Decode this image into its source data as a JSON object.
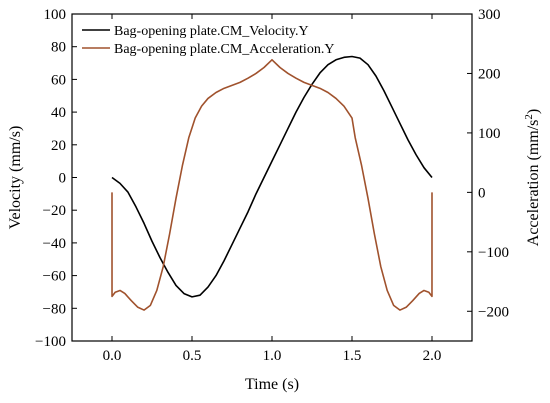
{
  "chart_data": {
    "type": "line",
    "xlabel": "Time (s)",
    "ylabel_left": "Velocity (mm/s)",
    "ylabel_right_prefix": "Acceleration (mm/s",
    "ylabel_right_sup": "2",
    "ylabel_right_suffix": ")",
    "xlim": [
      -0.25,
      2.25
    ],
    "ylim_left": [
      -100,
      100
    ],
    "ylim_right": [
      -250,
      300
    ],
    "x_ticks": [
      0.0,
      0.5,
      1.0,
      1.5,
      2.0
    ],
    "x_tick_labels": [
      "0.0",
      "0.5",
      "1.0",
      "1.5",
      "2.0"
    ],
    "y_left_ticks": [
      -100,
      -80,
      -60,
      -40,
      -20,
      0,
      20,
      40,
      60,
      80,
      100
    ],
    "y_left_tick_labels": [
      "−100",
      "−80",
      "−60",
      "−40",
      "−20",
      "0",
      "20",
      "40",
      "60",
      "80",
      "100"
    ],
    "y_right_ticks": [
      -200,
      -100,
      0,
      100,
      200,
      300
    ],
    "y_right_tick_labels": [
      "−200",
      "−100",
      "0",
      "100",
      "200",
      "300"
    ],
    "grid": false,
    "legend_position": "top-left",
    "series": [
      {
        "name": "Bag-opening plate.CM_Velocity.Y",
        "color": "#000000",
        "axis": "left",
        "x": [
          0.0,
          0.05,
          0.1,
          0.15,
          0.2,
          0.25,
          0.3,
          0.35,
          0.4,
          0.45,
          0.5,
          0.55,
          0.6,
          0.65,
          0.7,
          0.75,
          0.8,
          0.85,
          0.9,
          0.95,
          1.0,
          1.05,
          1.1,
          1.15,
          1.2,
          1.25,
          1.3,
          1.35,
          1.4,
          1.45,
          1.5,
          1.55,
          1.6,
          1.65,
          1.7,
          1.75,
          1.8,
          1.85,
          1.9,
          1.95,
          2.0
        ],
        "y": [
          0,
          -3.6,
          -9,
          -18,
          -28,
          -39,
          -49,
          -58,
          -66,
          -71,
          -73,
          -72,
          -67,
          -60,
          -51,
          -41,
          -31,
          -21,
          -10,
          0,
          10,
          20,
          30,
          40,
          49,
          57,
          64,
          69,
          72,
          73.5,
          74,
          73,
          69,
          62,
          53,
          43,
          33,
          23,
          14,
          6,
          0
        ]
      },
      {
        "name": "Bag-opening plate.CM_Acceleration.Y",
        "color": "#a0522d",
        "axis": "right",
        "x": [
          0.0,
          0.0001,
          0.02,
          0.05,
          0.08,
          0.12,
          0.16,
          0.2,
          0.24,
          0.28,
          0.32,
          0.36,
          0.4,
          0.44,
          0.48,
          0.52,
          0.56,
          0.6,
          0.65,
          0.7,
          0.75,
          0.8,
          0.85,
          0.9,
          0.95,
          1.0,
          1.05,
          1.1,
          1.15,
          1.2,
          1.25,
          1.3,
          1.35,
          1.4,
          1.45,
          1.5,
          1.52,
          1.56,
          1.6,
          1.64,
          1.68,
          1.72,
          1.76,
          1.8,
          1.84,
          1.88,
          1.92,
          1.95,
          1.98,
          1.9999,
          2.0
        ],
        "y": [
          0,
          -175,
          -168,
          -165,
          -170,
          -182,
          -193,
          -198,
          -190,
          -165,
          -125,
          -70,
          -10,
          45,
          92,
          125,
          145,
          158,
          168,
          175,
          180,
          185,
          192,
          200,
          210,
          223,
          210,
          200,
          192,
          185,
          180,
          175,
          168,
          158,
          145,
          125,
          92,
          45,
          -10,
          -70,
          -125,
          -165,
          -190,
          -198,
          -193,
          -182,
          -170,
          -165,
          -168,
          -175,
          0
        ]
      }
    ]
  }
}
